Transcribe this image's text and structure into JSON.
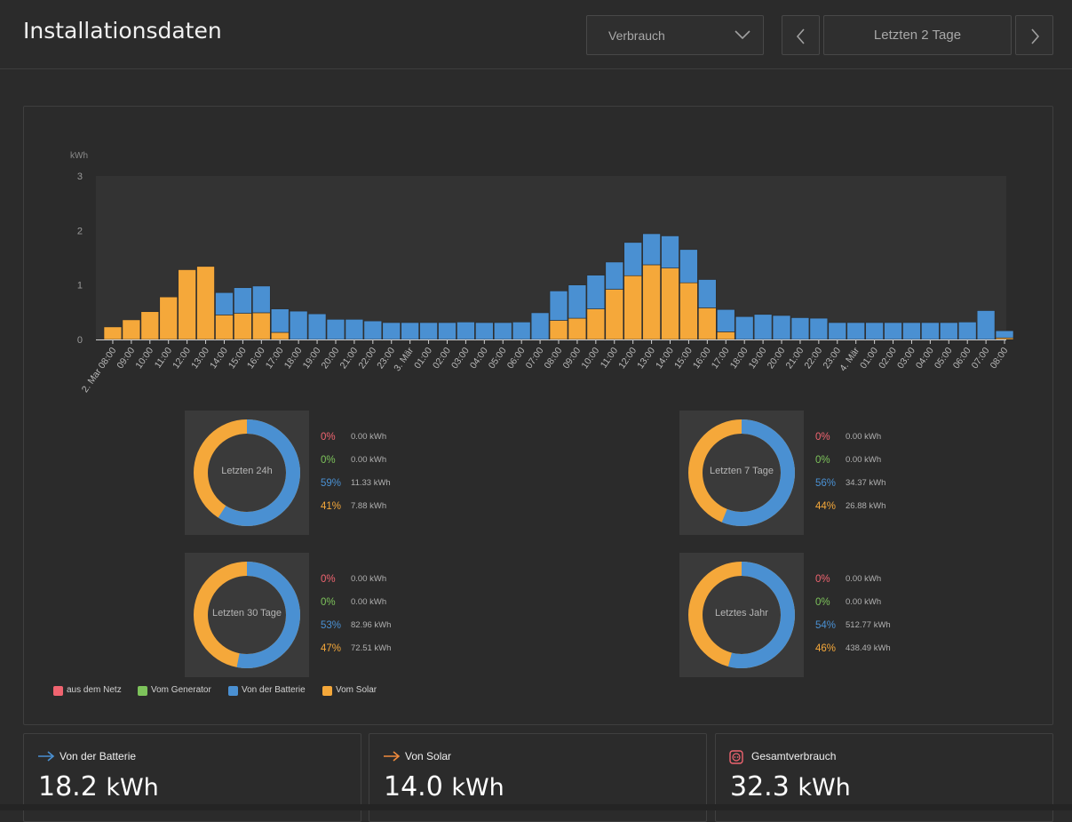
{
  "header": {
    "title": "Installationsdaten",
    "dropdown_value": "Verbrauch",
    "range_label": "Letzten 2 Tage"
  },
  "colors": {
    "grid": "#f06470",
    "generator": "#7dc35b",
    "battery": "#4a90d2",
    "solar": "#f5a83a",
    "plot_bg": "#333333"
  },
  "chart_data": {
    "type": "bar",
    "stacked": true,
    "ylabel": "kWh",
    "ylim": [
      0,
      3
    ],
    "yticks": [
      "0",
      "1",
      "2",
      "3"
    ],
    "categories": [
      "2. Mar 08:00",
      "09:00",
      "10:00",
      "11:00",
      "12:00",
      "13:00",
      "14:00",
      "15:00",
      "16:00",
      "17:00",
      "18:00",
      "19:00",
      "20:00",
      "21:00",
      "22:00",
      "23:00",
      "3. Mär",
      "01:00",
      "02:00",
      "03:00",
      "04:00",
      "05:00",
      "06:00",
      "07:00",
      "08:00",
      "09:00",
      "10:00",
      "11:00",
      "12:00",
      "13:00",
      "14:00",
      "15:00",
      "16:00",
      "17:00",
      "18:00",
      "19:00",
      "20:00",
      "21:00",
      "22:00",
      "23:00",
      "4. Mär",
      "01:00",
      "02:00",
      "03:00",
      "04:00",
      "05:00",
      "06:00",
      "07:00",
      "08:00"
    ],
    "series": [
      {
        "name": "aus dem Netz",
        "values": [
          0,
          0,
          0,
          0,
          0,
          0,
          0,
          0,
          0,
          0,
          0,
          0,
          0,
          0,
          0,
          0,
          0,
          0,
          0,
          0,
          0,
          0,
          0,
          0,
          0,
          0,
          0,
          0,
          0,
          0,
          0,
          0,
          0,
          0,
          0,
          0,
          0,
          0,
          0,
          0,
          0,
          0,
          0,
          0,
          0,
          0,
          0,
          0,
          0
        ]
      },
      {
        "name": "Vom Generator",
        "values": [
          0,
          0,
          0,
          0,
          0,
          0,
          0,
          0,
          0,
          0,
          0,
          0,
          0,
          0,
          0,
          0,
          0,
          0,
          0,
          0,
          0,
          0,
          0,
          0,
          0,
          0,
          0,
          0,
          0,
          0,
          0,
          0,
          0,
          0,
          0,
          0,
          0,
          0,
          0,
          0,
          0,
          0,
          0,
          0,
          0,
          0,
          0,
          0,
          0
        ]
      },
      {
        "name": "Von der Batterie",
        "values": [
          0,
          0,
          0,
          0,
          0,
          0,
          0.41,
          0.47,
          0.49,
          0.43,
          0.52,
          0.47,
          0.37,
          0.37,
          0.34,
          0.31,
          0.31,
          0.31,
          0.31,
          0.32,
          0.31,
          0.31,
          0.32,
          0.49,
          0.54,
          0.61,
          0.62,
          0.5,
          0.61,
          0.57,
          0.59,
          0.61,
          0.52,
          0.41,
          0.42,
          0.46,
          0.44,
          0.4,
          0.39,
          0.31,
          0.31,
          0.31,
          0.31,
          0.31,
          0.31,
          0.31,
          0.32,
          0.53,
          0.13
        ]
      },
      {
        "name": "Vom Solar",
        "values": [
          0.23,
          0.36,
          0.51,
          0.78,
          1.28,
          1.34,
          0.45,
          0.48,
          0.49,
          0.13,
          0,
          0,
          0,
          0,
          0,
          0,
          0,
          0,
          0,
          0,
          0,
          0,
          0,
          0,
          0.35,
          0.39,
          0.56,
          0.92,
          1.17,
          1.37,
          1.31,
          1.04,
          0.58,
          0.14,
          0,
          0,
          0,
          0,
          0,
          0,
          0,
          0,
          0,
          0,
          0,
          0,
          0,
          0,
          0.03
        ]
      }
    ]
  },
  "donuts": [
    {
      "label": "Letzten 24h",
      "stats": [
        {
          "pct": "0%",
          "kwh": "0.00 kWh"
        },
        {
          "pct": "0%",
          "kwh": "0.00 kWh"
        },
        {
          "pct": "59%",
          "kwh": "11.33 kWh"
        },
        {
          "pct": "41%",
          "kwh": "7.88 kWh"
        }
      ],
      "battery_fraction": 0.59,
      "solar_fraction": 0.41
    },
    {
      "label": "Letzten 7 Tage",
      "stats": [
        {
          "pct": "0%",
          "kwh": "0.00 kWh"
        },
        {
          "pct": "0%",
          "kwh": "0.00 kWh"
        },
        {
          "pct": "56%",
          "kwh": "34.37 kWh"
        },
        {
          "pct": "44%",
          "kwh": "26.88 kWh"
        }
      ],
      "battery_fraction": 0.56,
      "solar_fraction": 0.44
    },
    {
      "label": "Letzten 30 Tage",
      "stats": [
        {
          "pct": "0%",
          "kwh": "0.00 kWh"
        },
        {
          "pct": "0%",
          "kwh": "0.00 kWh"
        },
        {
          "pct": "53%",
          "kwh": "82.96 kWh"
        },
        {
          "pct": "47%",
          "kwh": "72.51 kWh"
        }
      ],
      "battery_fraction": 0.53,
      "solar_fraction": 0.47
    },
    {
      "label": "Letztes Jahr",
      "stats": [
        {
          "pct": "0%",
          "kwh": "0.00 kWh"
        },
        {
          "pct": "0%",
          "kwh": "0.00 kWh"
        },
        {
          "pct": "54%",
          "kwh": "512.77 kWh"
        },
        {
          "pct": "46%",
          "kwh": "438.49 kWh"
        }
      ],
      "battery_fraction": 0.54,
      "solar_fraction": 0.46
    }
  ],
  "legend": [
    "aus dem Netz",
    "Vom Generator",
    "Von der Batterie",
    "Vom Solar"
  ],
  "cards": [
    {
      "title": "Von der Batterie",
      "value": "18.2",
      "unit": "kWh",
      "icon": "arrow-right-icon"
    },
    {
      "title": "Von Solar",
      "value": "14.0",
      "unit": "kWh",
      "icon": "arrow-right-icon"
    },
    {
      "title": "Gesamtverbrauch",
      "value": "32.3",
      "unit": "kWh",
      "icon": "socket-icon"
    }
  ]
}
